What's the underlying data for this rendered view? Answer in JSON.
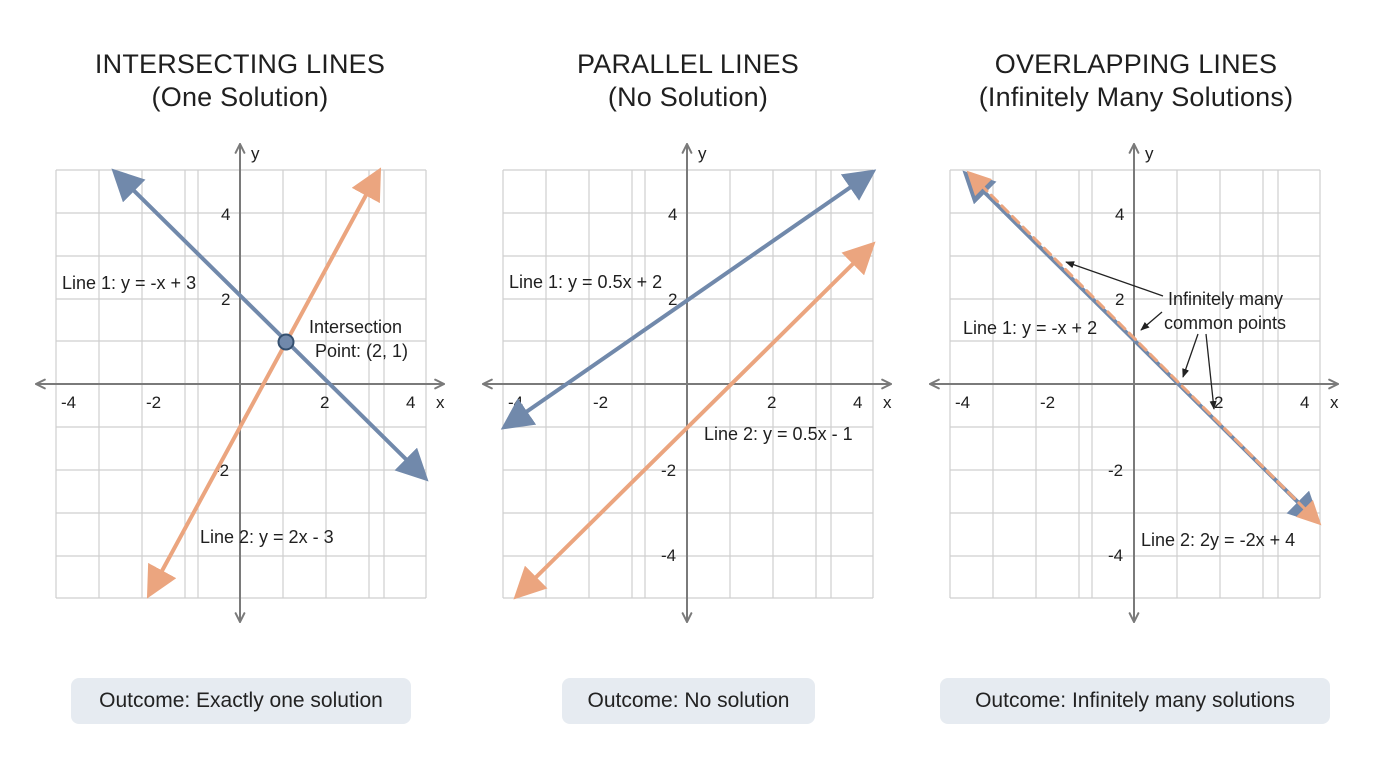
{
  "panels": [
    {
      "title": "INTERSECTING LINES",
      "subtitle": "(One Solution)",
      "line1_label": "Line 1: y = -x + 3",
      "line2_label": "Line 2: y = 2x - 3",
      "annotation": [
        "Intersection",
        "Point: (2, 1)"
      ],
      "outcome": "Outcome: Exactly one solution"
    },
    {
      "title": "PARALLEL LINES",
      "subtitle": "(No Solution)",
      "line1_label": "Line 1: y = 0.5x + 2",
      "line2_label": "Line 2: y = 0.5x - 1",
      "outcome": "Outcome: No solution"
    },
    {
      "title": "OVERLAPPING LINES",
      "subtitle": "(Infinitely Many Solutions)",
      "line1_label": "Line 1: y = -x + 2",
      "line2_label": "Line 2: 2y = -2x + 4",
      "annotation": [
        "Infinitely many",
        "common points"
      ],
      "outcome": "Outcome: Infinitely many solutions"
    }
  ],
  "axis": {
    "x_label": "x",
    "y_label": "y",
    "x_ticks": [
      "-4",
      "-2",
      "2",
      "4"
    ],
    "y_ticks": [
      "4",
      "2",
      "-2",
      "-4"
    ]
  },
  "colors": {
    "line1": "#7189ab",
    "line2": "#eba57f",
    "grid": "#cfcfcf",
    "axis": "#7a7a7a",
    "outcome_bg": "#e6ebf1"
  }
}
